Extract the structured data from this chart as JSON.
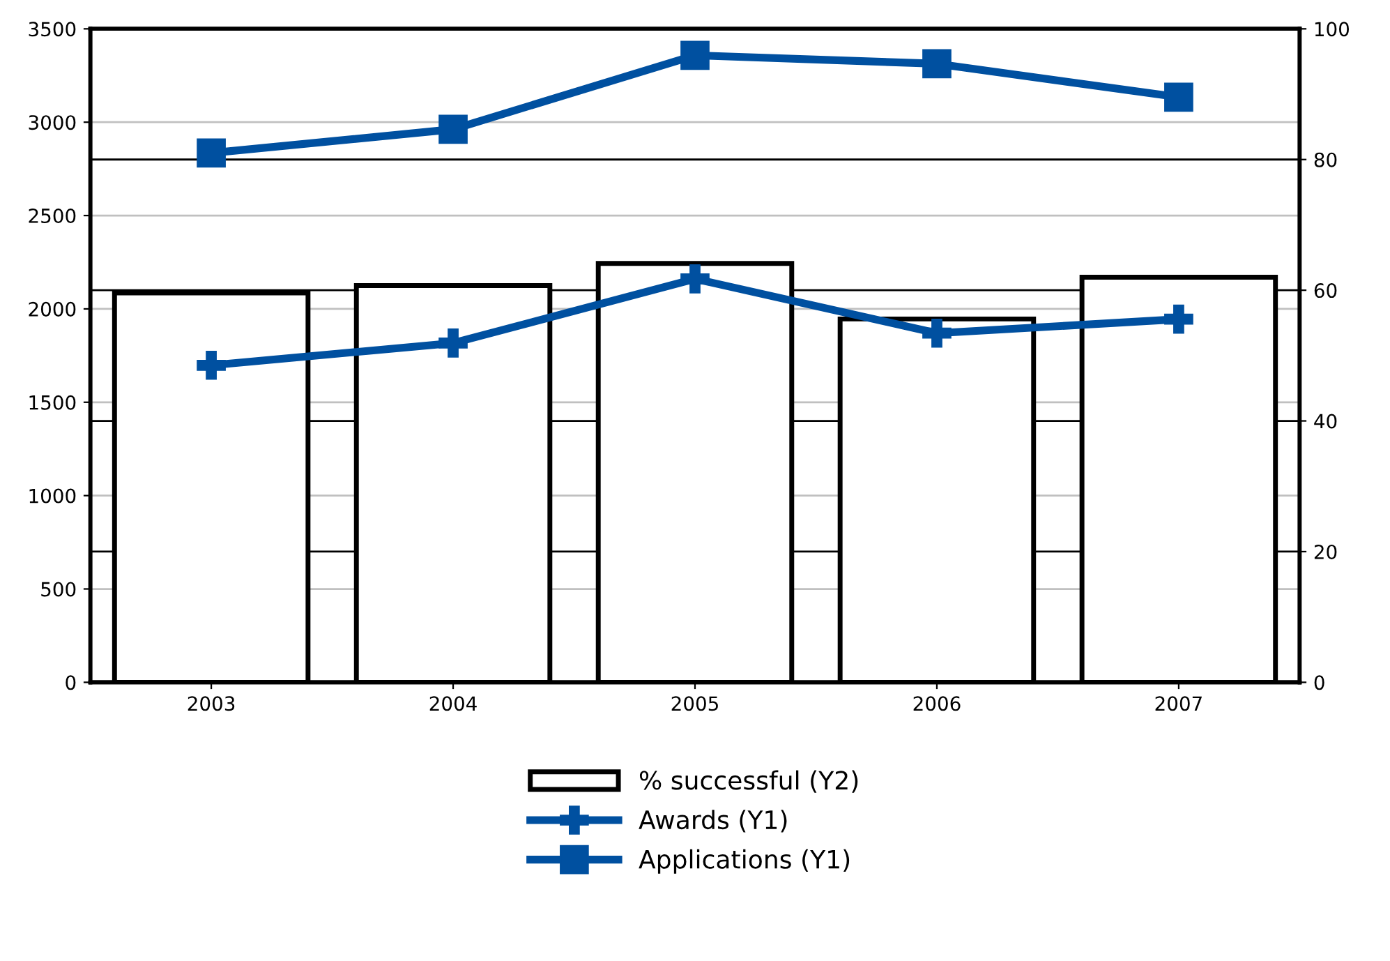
{
  "chart_data": {
    "type": "bar",
    "categories": [
      "2003",
      "2004",
      "2005",
      "2006",
      "2007"
    ],
    "series": [
      {
        "name": "% successful (Y2)",
        "axis": "y2",
        "color": "#ffffff",
        "values": [
          59.6,
          60.7,
          64.1,
          55.6,
          62.0
        ]
      },
      {
        "name": "Awards (Y1)",
        "type": "line",
        "color": "#0050a0",
        "marker": "cross",
        "values": [
          1698,
          1817,
          2161,
          1870,
          1945
        ]
      },
      {
        "name": "Applications (Y1)",
        "type": "line",
        "color": "#0050a0",
        "marker": "square",
        "values": [
          2835,
          2962,
          3358,
          3313,
          3134
        ]
      }
    ],
    "ylim": [
      0,
      3500
    ],
    "yticks": [
      0,
      500,
      1000,
      1500,
      2000,
      2500,
      3000,
      3500
    ],
    "y2lim": [
      0,
      100
    ],
    "y2ticks": [
      0,
      20,
      40,
      60,
      80,
      100
    ],
    "grid": true,
    "legend": "bottom"
  }
}
